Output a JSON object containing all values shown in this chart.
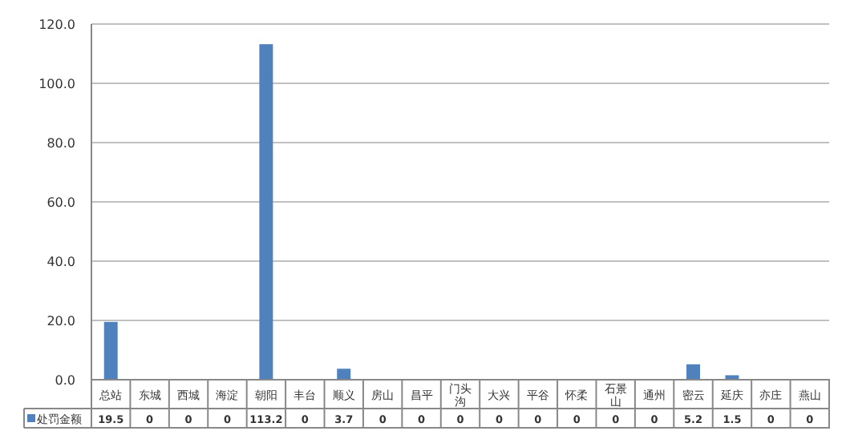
{
  "chart_data": {
    "type": "bar",
    "categories": [
      "总站",
      "东城",
      "西城",
      "海淀",
      "朝阳",
      "丰台",
      "顺义",
      "房山",
      "昌平",
      "门头沟",
      "大兴",
      "平谷",
      "怀柔",
      "石景山",
      "通州",
      "密云",
      "延庆",
      "亦庄",
      "燕山"
    ],
    "series": [
      {
        "name": "处罚金额",
        "color": "#4f81bd",
        "values": [
          19.5,
          0,
          0,
          0,
          113.2,
          0,
          3.7,
          0,
          0,
          0,
          0,
          0,
          0,
          0,
          0,
          5.2,
          1.5,
          0,
          0
        ]
      }
    ],
    "ylim": [
      0,
      120
    ],
    "yticks": [
      {
        "value": 0,
        "label": "0.0"
      },
      {
        "value": 20,
        "label": "20.0"
      },
      {
        "value": 40,
        "label": "40.0"
      },
      {
        "value": 60,
        "label": "60.0"
      },
      {
        "value": 80,
        "label": "80.0"
      },
      {
        "value": 100,
        "label": "100.0"
      },
      {
        "value": 120,
        "label": "120.0"
      }
    ],
    "grid": "y",
    "legend": "bottom left",
    "data_labels": true
  }
}
